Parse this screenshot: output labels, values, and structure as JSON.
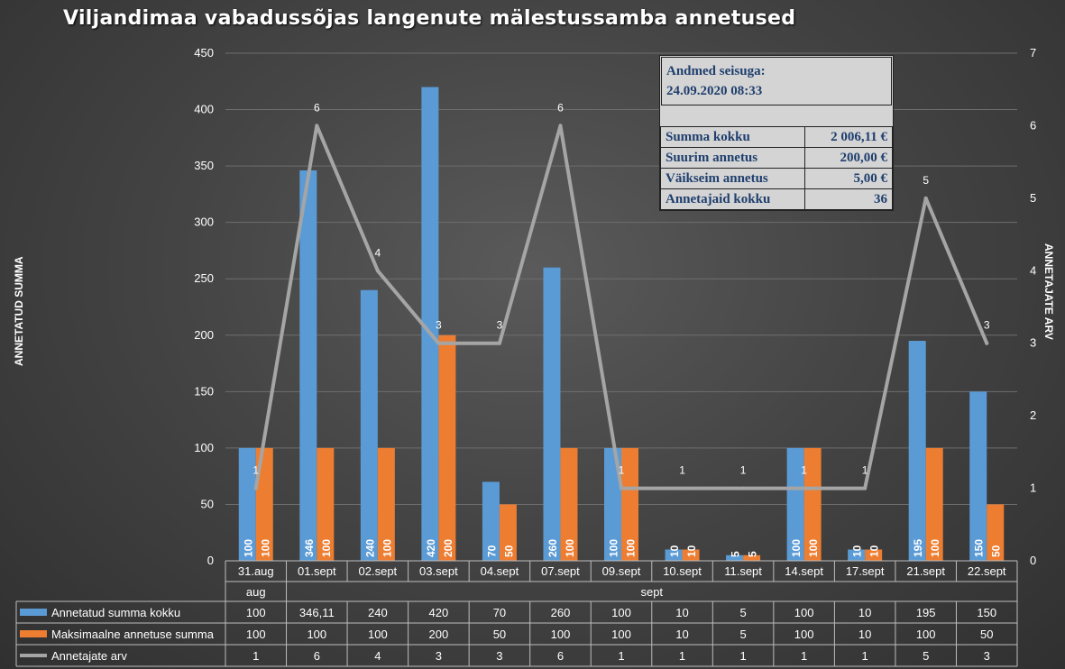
{
  "title": "Viljandimaa vabadussõjas langenute mälestussamba annetused",
  "colors": {
    "blue": "#5b9bd5",
    "orange": "#ed7d31",
    "gray": "#a5a5a5"
  },
  "info_box": {
    "heading_line1": "Andmed seisuga:",
    "heading_line2": "24.09.2020 08:33",
    "rows": [
      {
        "label": "Summa kokku",
        "value": "2 006,11 €"
      },
      {
        "label": "Suurim annetus",
        "value": "200,00 €"
      },
      {
        "label": "Väikseim annetus",
        "value": "5,00 €"
      },
      {
        "label": "Annetajaid kokku",
        "value": "36"
      }
    ]
  },
  "chart_data": {
    "type": "bar",
    "categories": [
      "31.aug",
      "01.sept",
      "02.sept",
      "03.sept",
      "04.sept",
      "07.sept",
      "09.sept",
      "10.sept",
      "11.sept",
      "14.sept",
      "17.sept",
      "21.sept",
      "22.sept"
    ],
    "category_groups": [
      {
        "label": "aug",
        "count": 1
      },
      {
        "label": "sept",
        "count": 12
      }
    ],
    "ylabel": "ANNETATUD SUMMA",
    "y2label": "ANNETAJATE ARV",
    "ylim": [
      0,
      450
    ],
    "y_ticks": [
      0,
      50,
      100,
      150,
      200,
      250,
      300,
      350,
      400,
      450
    ],
    "y2lim": [
      0,
      7
    ],
    "y2_ticks": [
      0,
      1,
      2,
      3,
      4,
      5,
      6,
      7
    ],
    "series": [
      {
        "name": "Annetatud summa kokku",
        "kind": "bar",
        "axis": "left",
        "color": "#5b9bd5",
        "values": [
          100,
          346.11,
          240,
          420,
          70,
          260,
          100,
          10,
          5,
          100,
          10,
          195,
          150
        ],
        "bar_labels": [
          "100",
          "346",
          "240",
          "420",
          "70",
          "260",
          "100",
          "10",
          "5",
          "100",
          "10",
          "195",
          "150"
        ],
        "table_labels": [
          "100",
          "346,11",
          "240",
          "420",
          "70",
          "260",
          "100",
          "10",
          "5",
          "100",
          "10",
          "195",
          "150"
        ]
      },
      {
        "name": "Maksimaalne annetuse summa",
        "kind": "bar",
        "axis": "left",
        "color": "#ed7d31",
        "values": [
          100,
          100,
          100,
          200,
          50,
          100,
          100,
          10,
          5,
          100,
          10,
          100,
          50
        ],
        "bar_labels": [
          "100",
          "100",
          "100",
          "200",
          "50",
          "100",
          "100",
          "10",
          "5",
          "100",
          "10",
          "100",
          "50"
        ],
        "table_labels": [
          "100",
          "100",
          "100",
          "200",
          "50",
          "100",
          "100",
          "10",
          "5",
          "100",
          "10",
          "100",
          "50"
        ]
      },
      {
        "name": "Annetajate arv",
        "kind": "line",
        "axis": "right",
        "color": "#a5a5a5",
        "values": [
          1,
          6,
          4,
          3,
          3,
          6,
          1,
          1,
          1,
          1,
          1,
          5,
          3
        ],
        "point_labels": [
          "1",
          "6",
          "4",
          "3",
          "3",
          "6",
          "1",
          "1",
          "1",
          "1",
          "1",
          "5",
          "3"
        ],
        "table_labels": [
          "1",
          "6",
          "4",
          "3",
          "3",
          "6",
          "1",
          "1",
          "1",
          "1",
          "1",
          "5",
          "3"
        ]
      }
    ],
    "grid": true,
    "legend": "data-table"
  }
}
